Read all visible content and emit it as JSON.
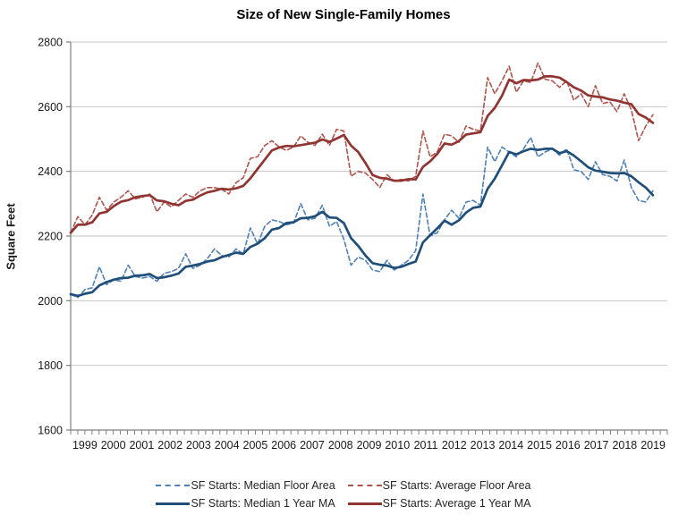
{
  "chart_data": {
    "type": "line",
    "title": "Size of New Single-Family Homes",
    "ylabel": "Square Feet",
    "ylim": [
      1600,
      2800
    ],
    "ytick_step": 200,
    "yticks": [
      1600,
      1800,
      2000,
      2200,
      2400,
      2600,
      2800
    ],
    "x_labels": [
      "1999",
      "2000",
      "2001",
      "2002",
      "2003",
      "2004",
      "2005",
      "2006",
      "2007",
      "2008",
      "2009",
      "2010",
      "2011",
      "2012",
      "2013",
      "2014",
      "2015",
      "2016",
      "2017",
      "2018",
      "2019"
    ],
    "points_per_year": 4,
    "x_start_year": 1999,
    "grid": "horizontal-only",
    "legend_position": "bottom",
    "colors": {
      "median_quarterly": "#4E80B8",
      "median_ma": "#1F4E79",
      "average_quarterly": "#B1544C",
      "average_ma": "#903532",
      "gridline": "#C6C6C6",
      "axis": "#7F7F7F",
      "tick_text": "#1A1A1A"
    },
    "series": [
      {
        "name": "SF Starts: Median Floor Area",
        "line_style": "dashed",
        "color": "#4E80B8",
        "values": [
          2020,
          2010,
          2035,
          2040,
          2105,
          2050,
          2065,
          2060,
          2110,
          2075,
          2070,
          2075,
          2060,
          2085,
          2090,
          2100,
          2145,
          2100,
          2110,
          2130,
          2160,
          2140,
          2135,
          2160,
          2145,
          2225,
          2175,
          2230,
          2250,
          2245,
          2235,
          2240,
          2300,
          2250,
          2255,
          2295,
          2230,
          2245,
          2190,
          2110,
          2135,
          2125,
          2095,
          2090,
          2125,
          2095,
          2110,
          2125,
          2155,
          2330,
          2200,
          2210,
          2250,
          2280,
          2255,
          2305,
          2310,
          2295,
          2475,
          2430,
          2475,
          2460,
          2445,
          2470,
          2505,
          2445,
          2460,
          2470,
          2450,
          2470,
          2405,
          2400,
          2375,
          2430,
          2390,
          2385,
          2370,
          2435,
          2350,
          2310,
          2305,
          2340
        ]
      },
      {
        "name": "SF Starts: Average Floor Area",
        "line_style": "dashed",
        "color": "#B1544C",
        "values": [
          2210,
          2260,
          2235,
          2265,
          2320,
          2280,
          2305,
          2320,
          2340,
          2315,
          2320,
          2330,
          2275,
          2305,
          2290,
          2310,
          2330,
          2320,
          2340,
          2350,
          2350,
          2345,
          2330,
          2365,
          2380,
          2440,
          2445,
          2480,
          2495,
          2475,
          2465,
          2475,
          2510,
          2490,
          2480,
          2515,
          2480,
          2530,
          2525,
          2385,
          2400,
          2395,
          2375,
          2350,
          2390,
          2370,
          2375,
          2370,
          2385,
          2525,
          2445,
          2460,
          2515,
          2510,
          2490,
          2540,
          2530,
          2525,
          2690,
          2640,
          2680,
          2725,
          2645,
          2680,
          2675,
          2735,
          2685,
          2680,
          2660,
          2680,
          2620,
          2640,
          2600,
          2665,
          2610,
          2615,
          2585,
          2640,
          2590,
          2495,
          2540,
          2575
        ]
      },
      {
        "name": "SF Starts: Median 1 Year MA",
        "line_style": "solid",
        "color": "#1F4E79",
        "ma_window": 4,
        "ma_source": 0
      },
      {
        "name": "SF Starts: Average 1 Year MA",
        "line_style": "solid",
        "color": "#903532",
        "ma_window": 4,
        "ma_source": 1
      }
    ]
  }
}
